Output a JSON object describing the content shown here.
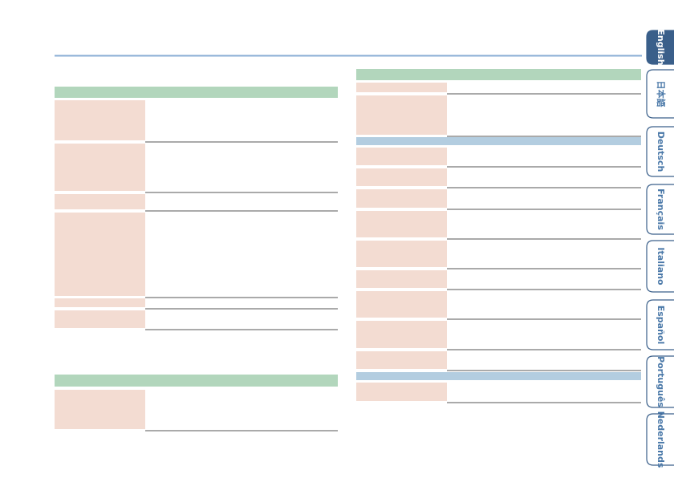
{
  "tabs": [
    "English",
    "日本語",
    "Deutsch",
    "Français",
    "Italiano",
    "Español",
    "Português",
    "Nederlands"
  ]
}
